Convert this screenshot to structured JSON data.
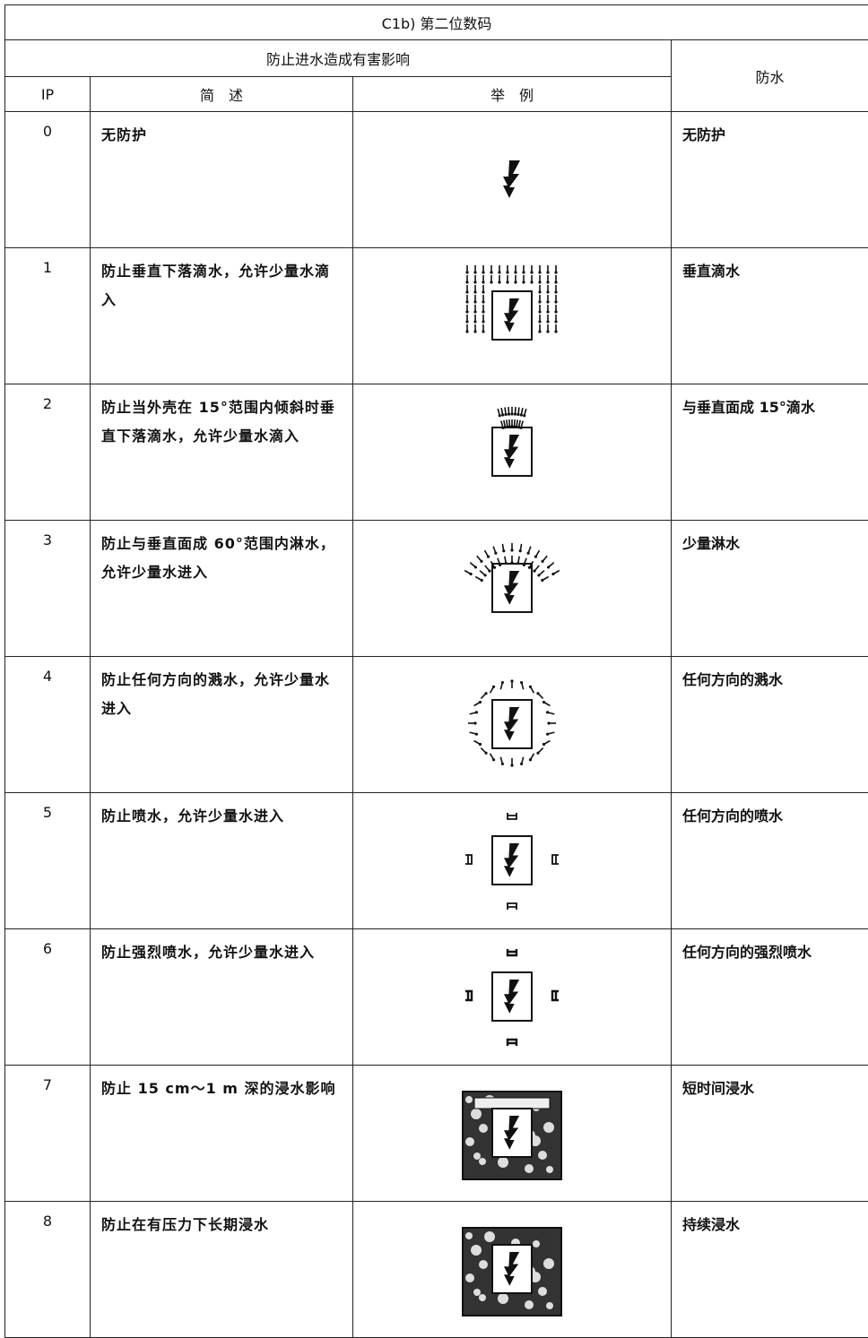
{
  "title": "C1b) 第二位数码",
  "table": {
    "group_header": "防止进水造成有害影响",
    "side_header": "防水",
    "columns": [
      "IP",
      "简　述",
      "举　例"
    ],
    "rows": [
      [
        "0",
        "无防护",
        "无防护"
      ],
      [
        "1",
        "防止垂直下落滴水，允许少量水滴入",
        "垂直滴水"
      ],
      [
        "2",
        "防止当外壳在 15°范围内倾斜时垂直下落滴水，允许少量水滴入",
        "与垂直面成 15°滴水"
      ],
      [
        "3",
        "防止与垂直面成 60°范围内淋水，允许少量水进入",
        "少量淋水"
      ],
      [
        "4",
        "防止任何方向的溅水，允许少量水进入",
        "任何方向的溅水"
      ],
      [
        "5",
        "防止喷水，允许少量水进入",
        "任何方向的喷水"
      ],
      [
        "6",
        "防止强烈喷水，允许少量水进入",
        "任何方向的强烈喷水"
      ],
      [
        "7",
        "防止 15 cm～1 m 深的浸水影响",
        "短时间浸水"
      ],
      [
        "8",
        "防止在有压力下长期浸水",
        "持续浸水"
      ]
    ]
  }
}
